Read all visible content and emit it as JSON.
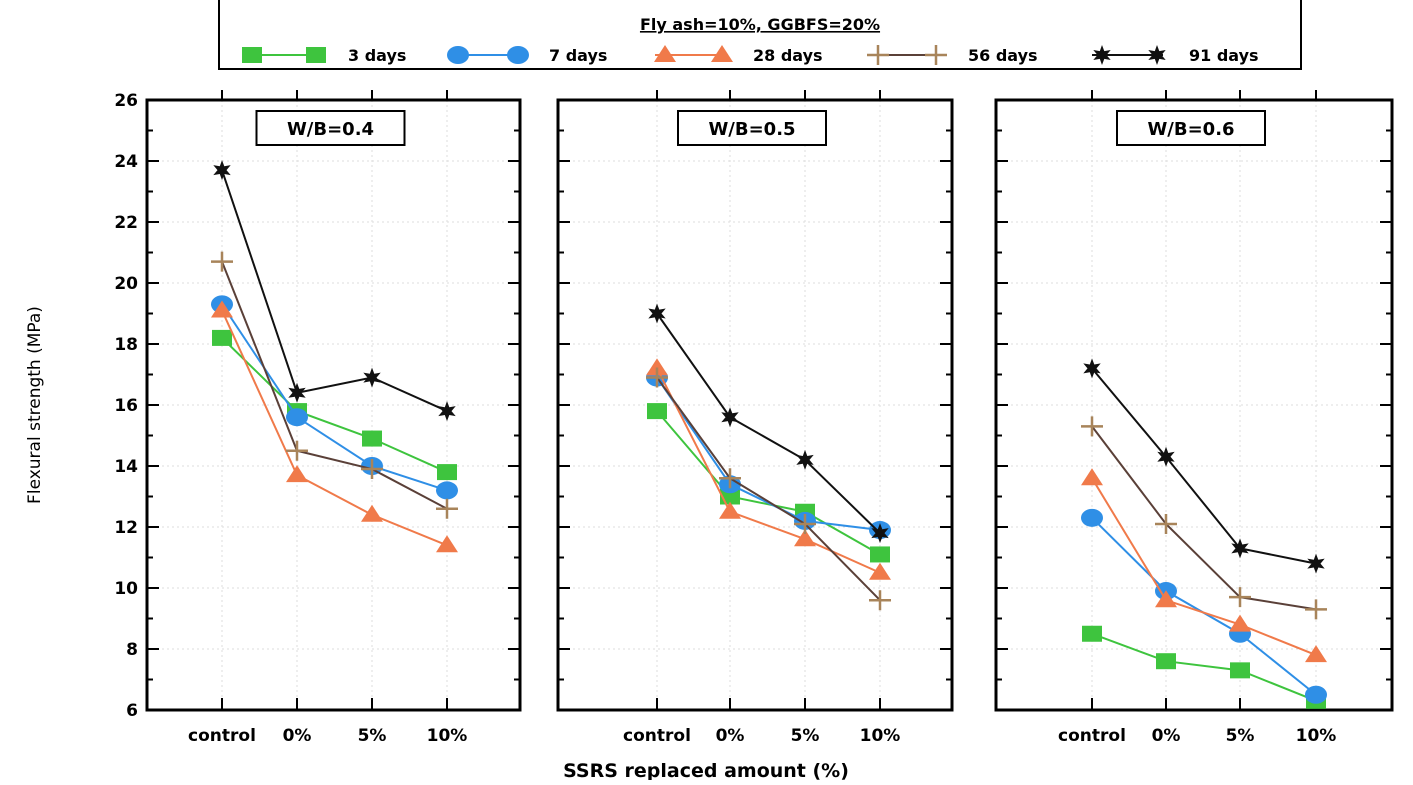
{
  "chart_data": {
    "type": "line",
    "legend_title": "Fly ash=10%, GGBFS=20%",
    "legend_placement": "top-center",
    "xlabel": "SSRS replaced amount (%)",
    "ylabel": "Flexural strength (MPa)",
    "ylim": [
      6,
      26
    ],
    "yticks": [
      "6",
      "8",
      "10",
      "12",
      "14",
      "16",
      "18",
      "20",
      "22",
      "24",
      "26"
    ],
    "categories": [
      "control",
      "0%",
      "5%",
      "10%"
    ],
    "grid": true,
    "series_styles": [
      {
        "name": "3 days",
        "color": "#3ec43e",
        "marker": "square"
      },
      {
        "name": "7 days",
        "color": "#2f8fe6",
        "marker": "circle"
      },
      {
        "name": "28 days",
        "color": "#f07a4a",
        "marker": "triangle"
      },
      {
        "name": "56 days",
        "color": "#a8845a",
        "marker": "plus"
      },
      {
        "name": "91 days",
        "color": "#111111",
        "marker": "star"
      }
    ],
    "panels": [
      {
        "title": "W/B=0.4",
        "series": [
          {
            "name": "3 days",
            "values": [
              18.2,
              15.8,
              14.9,
              13.8
            ]
          },
          {
            "name": "7 days",
            "values": [
              19.3,
              15.6,
              14.0,
              13.2
            ]
          },
          {
            "name": "28 days",
            "values": [
              19.1,
              13.7,
              12.4,
              11.4
            ]
          },
          {
            "name": "56 days",
            "values": [
              20.7,
              14.5,
              13.9,
              12.6
            ]
          },
          {
            "name": "91 days",
            "values": [
              23.7,
              16.4,
              16.9,
              15.8
            ]
          }
        ]
      },
      {
        "title": "W/B=0.5",
        "series": [
          {
            "name": "3 days",
            "values": [
              15.8,
              13.0,
              12.5,
              11.1
            ]
          },
          {
            "name": "7 days",
            "values": [
              16.9,
              13.4,
              12.2,
              11.9
            ]
          },
          {
            "name": "28 days",
            "values": [
              17.2,
              12.5,
              11.6,
              10.5
            ]
          },
          {
            "name": "56 days",
            "values": [
              16.9,
              13.6,
              12.1,
              9.6
            ]
          },
          {
            "name": "91 days",
            "values": [
              19.0,
              15.6,
              14.2,
              11.8
            ]
          }
        ]
      },
      {
        "title": "W/B=0.6",
        "series": [
          {
            "name": "3 days",
            "values": [
              8.5,
              7.6,
              7.3,
              6.3
            ]
          },
          {
            "name": "7 days",
            "values": [
              12.3,
              9.9,
              8.5,
              6.5
            ]
          },
          {
            "name": "28 days",
            "values": [
              13.6,
              9.6,
              8.8,
              7.8
            ]
          },
          {
            "name": "56 days",
            "values": [
              15.3,
              12.1,
              9.7,
              9.3
            ]
          },
          {
            "name": "91 days",
            "values": [
              17.2,
              14.3,
              11.3,
              10.8
            ]
          }
        ]
      }
    ]
  }
}
